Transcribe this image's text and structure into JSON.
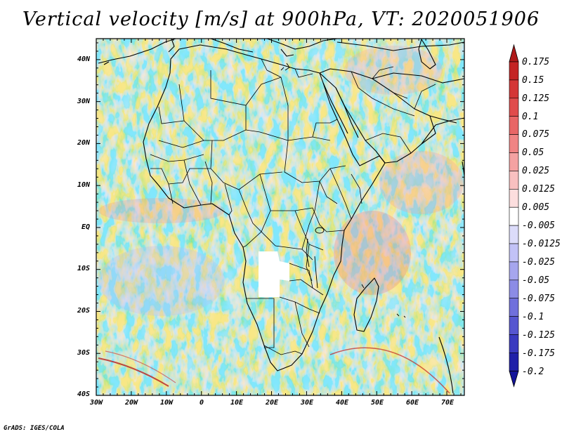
{
  "title": "Vertical velocity [m/s] at 900hPa, VT: 2020051906",
  "map": {
    "lat_labels": [
      "40N",
      "30N",
      "20N",
      "10N",
      "EQ",
      "10S",
      "20S",
      "30S",
      "40S"
    ],
    "lon_labels": [
      "30W",
      "20W",
      "10W",
      "0",
      "10E",
      "20E",
      "30E",
      "40E",
      "50E",
      "60E",
      "70E"
    ],
    "lat_range": [
      -40,
      45
    ],
    "lon_range": [
      -30,
      75
    ]
  },
  "colorbar": {
    "labels": [
      "0.175",
      "0.15",
      "0.125",
      "0.1",
      "0.075",
      "0.05",
      "0.025",
      "0.0125",
      "0.005",
      "-0.005",
      "-0.0125",
      "-0.025",
      "-0.05",
      "-0.075",
      "-0.1",
      "-0.125",
      "-0.175",
      "-0.2"
    ],
    "colors": [
      "#b01a1a",
      "#c42424",
      "#d43636",
      "#e04c4c",
      "#e86666",
      "#f08484",
      "#f4a2a2",
      "#f8c0c0",
      "#fcdede",
      "#ffffff",
      "#dcdcfa",
      "#c2c2f6",
      "#a6a6ee",
      "#8c8ce6",
      "#7070dc",
      "#5656d0",
      "#3a3ac0",
      "#2020a8",
      "#14149a"
    ]
  },
  "credit": "GrADS: IGES/COLA"
}
